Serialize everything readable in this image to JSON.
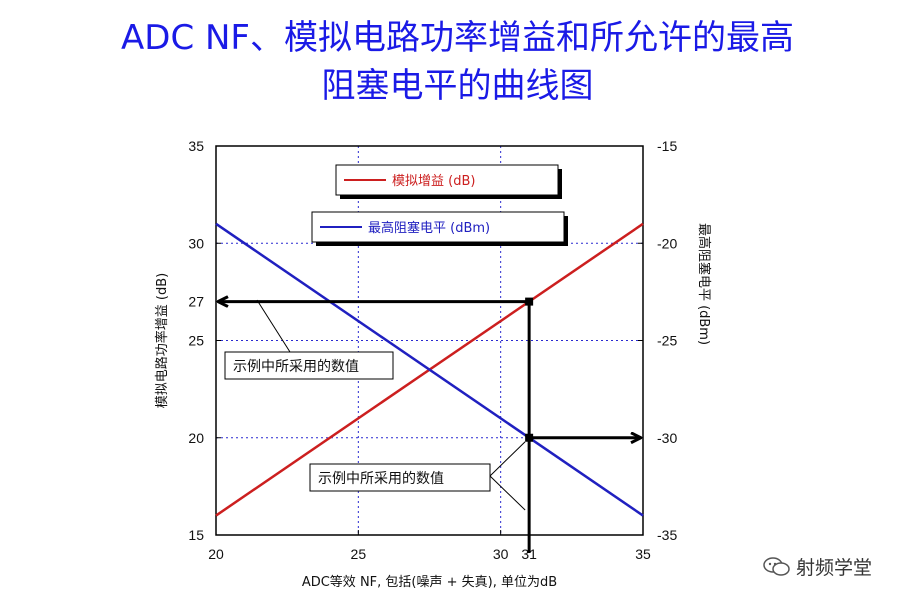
{
  "title_line1": "ADC NF、模拟电路功率增益和所允许的最高",
  "title_line2": "阻塞电平的曲线图",
  "chart_data": {
    "type": "line",
    "xlabel": "ADC等效 NF, 包括(噪声 + 失真), 单位为dB",
    "ylabel_left": "模拟电路功率增益 (dB)",
    "ylabel_right": "最高阻塞电平 (dBm)",
    "xlim": [
      20,
      35
    ],
    "ylim_left": [
      15,
      35
    ],
    "ylim_right": [
      -35,
      -15
    ],
    "x_ticks": [
      "20",
      "25",
      "30",
      "31",
      "35"
    ],
    "y_left_ticks": [
      "35",
      "30",
      "27",
      "25",
      "20",
      "15"
    ],
    "y_right_ticks": [
      "-15",
      "-20",
      "-25",
      "-30",
      "-35"
    ],
    "grid": true,
    "series": [
      {
        "name": "模拟增益 (dB)",
        "axis": "left",
        "color": "#cc1f1f",
        "x": [
          20,
          35
        ],
        "y": [
          16,
          31
        ]
      },
      {
        "name": "最高阻塞电平 (dBm)",
        "axis": "right",
        "color": "#2020c0",
        "x": [
          20,
          35
        ],
        "y": [
          -19,
          -34
        ]
      }
    ],
    "annotations": [
      {
        "text": "示例中所采用的数值",
        "point_x": 31,
        "point_y_left": 27
      },
      {
        "text": "示例中所采用的数值",
        "point_x": 31,
        "point_y_right": -30
      }
    ]
  },
  "watermark": "射频学堂"
}
